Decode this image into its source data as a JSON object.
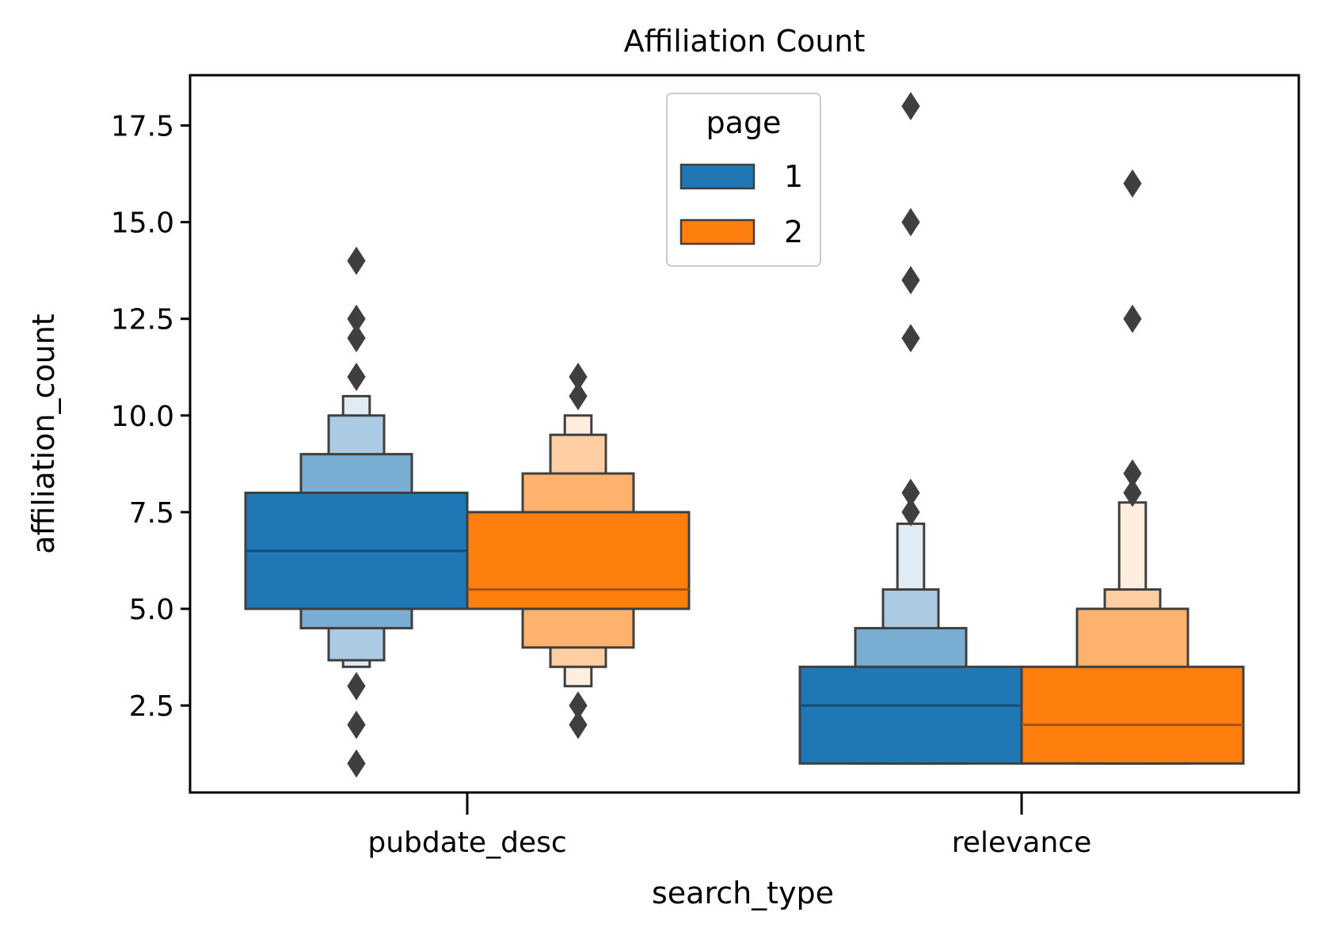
{
  "chart_data": {
    "type": "boxen",
    "title": "Affiliation Count",
    "xlabel": "search_type",
    "ylabel": "affiliation_count",
    "categories": [
      "pubdate_desc",
      "relevance"
    ],
    "ylim": [
      0.25,
      18.8
    ],
    "yticks": [
      2.5,
      5.0,
      7.5,
      10.0,
      12.5,
      15.0,
      17.5
    ],
    "ytick_labels": [
      "2.5",
      "5.0",
      "7.5",
      "10.0",
      "12.5",
      "15.0",
      "17.5"
    ],
    "grid": false,
    "legend": {
      "title": "page",
      "placement": "upper center",
      "entries": [
        "1",
        "2"
      ]
    },
    "series": [
      {
        "name": "1",
        "color": "#1f77b4",
        "groups": [
          {
            "category": "pubdate_desc",
            "median": 6.5,
            "boxes": [
              [
                5.0,
                8.0
              ],
              [
                4.5,
                9.0
              ],
              [
                3.67,
                10.0
              ],
              [
                3.5,
                10.5
              ]
            ],
            "outliers": [
              14.0,
              12.5,
              12.0,
              11.0,
              3.0,
              2.0,
              1.0
            ]
          },
          {
            "category": "relevance",
            "median": 2.5,
            "boxes": [
              [
                1.0,
                3.5
              ],
              [
                1.0,
                4.5
              ],
              [
                1.0,
                5.5
              ],
              [
                1.0,
                7.2
              ]
            ],
            "outliers": [
              18.0,
              15.0,
              13.5,
              12.0,
              8.0,
              7.5
            ]
          }
        ]
      },
      {
        "name": "2",
        "color": "#ff7f0e",
        "groups": [
          {
            "category": "pubdate_desc",
            "median": 5.5,
            "boxes": [
              [
                5.0,
                7.5
              ],
              [
                4.0,
                8.5
              ],
              [
                3.5,
                9.5
              ],
              [
                3.0,
                10.0
              ]
            ],
            "outliers": [
              11.0,
              10.5,
              2.5,
              2.0
            ]
          },
          {
            "category": "relevance",
            "median": 2.0,
            "boxes": [
              [
                1.0,
                3.5
              ],
              [
                1.0,
                5.0
              ],
              [
                1.0,
                5.5
              ],
              [
                1.0,
                7.75
              ]
            ],
            "outliers": [
              16.0,
              12.5,
              8.5,
              8.0
            ]
          }
        ]
      }
    ]
  }
}
